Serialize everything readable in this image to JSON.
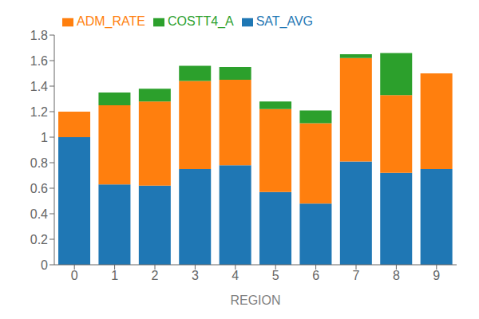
{
  "chart_data": {
    "type": "bar",
    "xlabel": "REGION",
    "categories": [
      "0",
      "1",
      "2",
      "3",
      "4",
      "5",
      "6",
      "7",
      "8",
      "9"
    ],
    "series": [
      {
        "name": "SAT_AVG",
        "color": "#1f77b4",
        "values": [
          1.0,
          0.63,
          0.62,
          0.75,
          0.78,
          0.57,
          0.48,
          0.81,
          0.72,
          0.75
        ]
      },
      {
        "name": "ADM_RATE",
        "color": "#ff7f0e",
        "values": [
          0.2,
          0.62,
          0.66,
          0.69,
          0.67,
          0.65,
          0.63,
          0.81,
          0.61,
          0.75
        ]
      },
      {
        "name": "COSTT4_A",
        "color": "#2ca02c",
        "values": [
          0.0,
          0.1,
          0.1,
          0.12,
          0.1,
          0.06,
          0.1,
          0.03,
          0.33,
          0.0
        ]
      }
    ],
    "ylim": [
      0.0,
      1.8
    ],
    "yticks": [
      0,
      0.2,
      0.4,
      0.6,
      0.8,
      1,
      1.2,
      1.4,
      1.6,
      1.8
    ],
    "stacked": true,
    "legend": "upper left",
    "grid": false
  }
}
